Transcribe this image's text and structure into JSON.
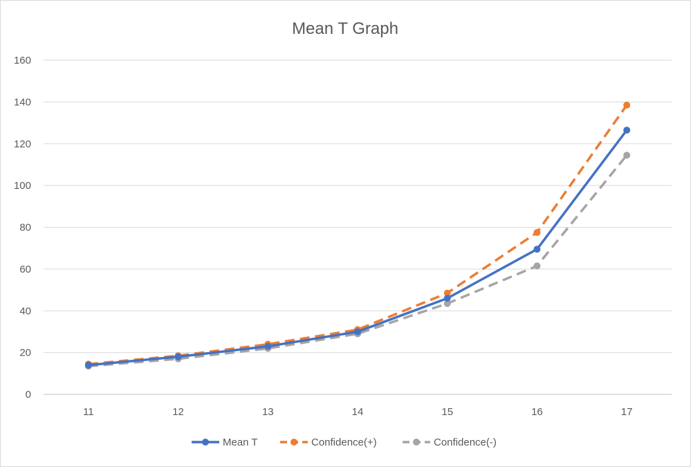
{
  "chart_data": {
    "type": "line",
    "title": "Mean T Graph",
    "xlabel": "",
    "ylabel": "",
    "categories": [
      "11",
      "12",
      "13",
      "14",
      "15",
      "16",
      "17"
    ],
    "ylim": [
      0,
      160
    ],
    "yticks": [
      0,
      20,
      40,
      60,
      80,
      100,
      120,
      140,
      160
    ],
    "grid": true,
    "legend_position": "bottom",
    "series": [
      {
        "name": "Mean T",
        "values": [
          14,
          18,
          23,
          30,
          46,
          69.5,
          126.5
        ],
        "color": "#4472c4",
        "dash": "solid",
        "marker": "circle"
      },
      {
        "name": "Confidence(+)",
        "values": [
          14.5,
          18.5,
          24,
          31,
          48.5,
          77.5,
          138.5
        ],
        "color": "#ed7d31",
        "dash": "dashed",
        "marker": "circle"
      },
      {
        "name": "Confidence(-)",
        "values": [
          13.5,
          17,
          22,
          29,
          43.5,
          61.5,
          114.5
        ],
        "color": "#a5a5a5",
        "dash": "dashed",
        "marker": "circle"
      }
    ]
  }
}
